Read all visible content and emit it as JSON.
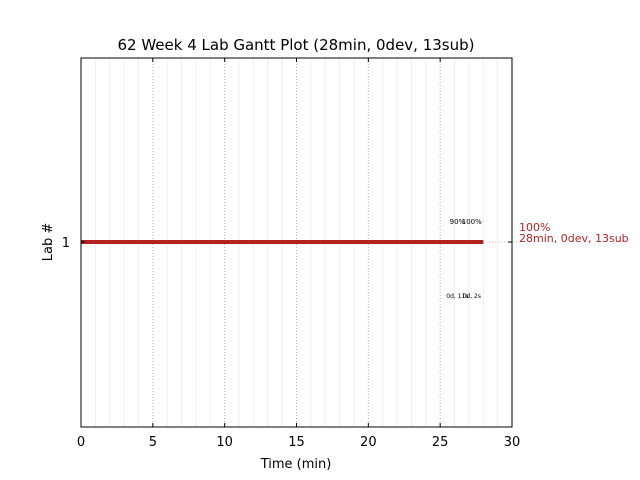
{
  "chart_data": {
    "type": "gantt",
    "title": "62 Week 4 Lab Gantt Plot (28min, 0dev, 13sub)",
    "xlabel": "Time (min)",
    "ylabel": "Lab #",
    "xlim": [
      0,
      30
    ],
    "xticks": [
      "0",
      "5",
      "10",
      "15",
      "20",
      "25",
      "30"
    ],
    "yticks": [
      "1"
    ],
    "grid": true,
    "bar_color": "#b22222",
    "bars": [
      {
        "lab": "1",
        "start": 0,
        "end": 28,
        "end_label_line1": "100%",
        "end_label_line2": "28min, 0dev, 13sub",
        "progress_marks": [
          {
            "label": "90%",
            "x": 26.2
          },
          {
            "label": "100%",
            "x": 27.2
          }
        ],
        "sub_marks": [
          {
            "label": "0d, 11s",
            "x": 26.2
          },
          {
            "label": "0d, 2s",
            "x": 27.2
          }
        ]
      }
    ]
  }
}
